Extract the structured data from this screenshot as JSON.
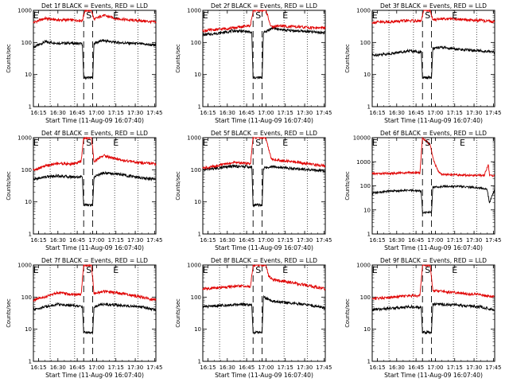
{
  "figure": {
    "time_start": "16:11",
    "time_end": "17:46"
  },
  "chart_data": [
    {
      "type": "line",
      "title": "Det 1f BLACK = Events, RED = LLD",
      "xlabel": "Start Time (11-Aug-09 16:07:40)",
      "ylabel": "Counts/sec",
      "yscale": "log",
      "ylim": [
        1,
        1000
      ],
      "y_ticks": [
        "1",
        "10",
        "100",
        "1000"
      ],
      "x_ticks": [
        "16:15",
        "16:30",
        "16:45",
        "17:00",
        "17:15",
        "17:30",
        "17:45"
      ],
      "markers": {
        "E1": "16:13",
        "S": "16:54",
        "E2": "17:15"
      },
      "vlines_dotted": [
        "16:24",
        "16:43",
        "17:14",
        "17:32"
      ],
      "vlines_dashed": [
        "16:50",
        "16:57"
      ],
      "series": [
        {
          "name": "BLACK = Events",
          "color": "#000000",
          "x": [
            "16:11",
            "16:20",
            "16:30",
            "16:40",
            "16:49",
            "16:50",
            "16:57",
            "16:58",
            "17:05",
            "17:15",
            "17:25",
            "17:35",
            "17:46"
          ],
          "values": [
            70,
            105,
            95,
            95,
            90,
            8,
            8,
            95,
            115,
            100,
            95,
            90,
            80
          ]
        },
        {
          "name": "RED = LLD",
          "color": "#e00000",
          "x": [
            "16:11",
            "16:20",
            "16:30",
            "16:40",
            "16:49",
            "16:51",
            "16:56",
            "16:58",
            "17:05",
            "17:15",
            "17:25",
            "17:35",
            "17:46"
          ],
          "values": [
            420,
            560,
            500,
            500,
            480,
            1000,
            1000,
            520,
            700,
            560,
            500,
            470,
            430
          ]
        }
      ]
    },
    {
      "type": "line",
      "title": "Det 2f BLACK = Events, RED = LLD",
      "xlabel": "Start Time (11-Aug-09 16:07:40)",
      "ylabel": "Counts/sec",
      "yscale": "log",
      "ylim": [
        1,
        1000
      ],
      "y_ticks": [
        "1",
        "10",
        "100",
        "1000"
      ],
      "x_ticks": [
        "16:15",
        "16:30",
        "16:45",
        "17:00",
        "17:15",
        "17:30",
        "17:45"
      ],
      "markers": {
        "E1": "16:13",
        "S": "16:54",
        "E2": "17:15"
      },
      "vlines_dotted": [
        "16:24",
        "16:43",
        "17:14",
        "17:32"
      ],
      "vlines_dashed": [
        "16:50",
        "16:57"
      ],
      "series": [
        {
          "name": "BLACK = Events",
          "color": "#000000",
          "x": [
            "16:11",
            "16:25",
            "16:35",
            "16:45",
            "16:49",
            "16:50",
            "16:57",
            "16:58",
            "17:05",
            "17:15",
            "17:30",
            "17:46"
          ],
          "values": [
            170,
            200,
            230,
            220,
            200,
            8,
            8,
            200,
            280,
            240,
            220,
            200
          ]
        },
        {
          "name": "RED = LLD",
          "color": "#e00000",
          "x": [
            "16:11",
            "16:25",
            "16:40",
            "16:48",
            "16:50",
            "16:52",
            "17:00",
            "17:04",
            "17:10",
            "17:20",
            "17:35",
            "17:46"
          ],
          "values": [
            230,
            260,
            300,
            340,
            1000,
            1000,
            1000,
            300,
            330,
            310,
            290,
            280
          ]
        }
      ]
    },
    {
      "type": "line",
      "title": "Det 3f BLACK = Events, RED = LLD",
      "xlabel": "Start Time (11-Aug-09 16:07:40)",
      "ylabel": "Counts/sec",
      "yscale": "log",
      "ylim": [
        1,
        1000
      ],
      "y_ticks": [
        "1",
        "10",
        "100",
        "1000"
      ],
      "x_ticks": [
        "16:15",
        "16:30",
        "16:45",
        "17:00",
        "17:15",
        "17:30",
        "17:45"
      ],
      "markers": {
        "E1": "16:13",
        "S": "16:54",
        "E2": "17:15"
      },
      "vlines_dotted": [
        "16:24",
        "16:43",
        "17:14",
        "17:32"
      ],
      "vlines_dashed": [
        "16:50",
        "16:57"
      ],
      "series": [
        {
          "name": "BLACK = Events",
          "color": "#000000",
          "x": [
            "16:11",
            "16:25",
            "16:40",
            "16:49",
            "16:50",
            "16:57",
            "16:58",
            "17:05",
            "17:20",
            "17:35",
            "17:46"
          ],
          "values": [
            40,
            45,
            55,
            50,
            8,
            8,
            65,
            70,
            60,
            55,
            50
          ]
        },
        {
          "name": "RED = LLD",
          "color": "#e00000",
          "x": [
            "16:11",
            "16:25",
            "16:40",
            "16:49",
            "16:51",
            "16:56",
            "16:58",
            "17:05",
            "17:20",
            "17:35",
            "17:46"
          ],
          "values": [
            420,
            440,
            480,
            460,
            1000,
            1000,
            500,
            560,
            520,
            480,
            440
          ]
        }
      ]
    },
    {
      "type": "line",
      "title": "Det 4f BLACK = Events, RED = LLD",
      "xlabel": "Start Time (11-Aug-09 16:07:40)",
      "ylabel": "Counts/sec",
      "yscale": "log",
      "ylim": [
        1,
        1000
      ],
      "y_ticks": [
        "1",
        "10",
        "100",
        "1000"
      ],
      "x_ticks": [
        "16:15",
        "16:30",
        "16:45",
        "17:00",
        "17:15",
        "17:30",
        "17:45"
      ],
      "markers": {
        "E1": "16:13",
        "S": "16:54",
        "E2": "17:15"
      },
      "vlines_dotted": [
        "16:24",
        "16:43",
        "17:14",
        "17:32"
      ],
      "vlines_dashed": [
        "16:50",
        "16:57"
      ],
      "series": [
        {
          "name": "BLACK = Events",
          "color": "#000000",
          "x": [
            "16:11",
            "16:20",
            "16:30",
            "16:40",
            "16:49",
            "16:50",
            "16:57",
            "16:58",
            "17:05",
            "17:15",
            "17:30",
            "17:46"
          ],
          "values": [
            50,
            60,
            65,
            60,
            60,
            8,
            8,
            60,
            80,
            75,
            60,
            50
          ]
        },
        {
          "name": "RED = LLD",
          "color": "#e00000",
          "x": [
            "16:11",
            "16:20",
            "16:30",
            "16:40",
            "16:48",
            "16:50",
            "16:56",
            "16:58",
            "17:05",
            "17:15",
            "17:30",
            "17:46"
          ],
          "values": [
            100,
            130,
            160,
            150,
            180,
            1000,
            1000,
            180,
            280,
            220,
            170,
            150
          ]
        }
      ]
    },
    {
      "type": "line",
      "title": "Det 5f BLACK = Events, RED = LLD",
      "xlabel": "Start Time (11-Aug-09 16:07:40)",
      "ylabel": "Counts/sec",
      "yscale": "log",
      "ylim": [
        1,
        1000
      ],
      "y_ticks": [
        "1",
        "10",
        "100",
        "1000"
      ],
      "x_ticks": [
        "16:15",
        "16:30",
        "16:45",
        "17:00",
        "17:15",
        "17:30",
        "17:45"
      ],
      "markers": {
        "E1": "16:13",
        "S": "16:54",
        "E2": "17:15"
      },
      "vlines_dotted": [
        "16:24",
        "16:43",
        "17:14",
        "17:32"
      ],
      "vlines_dashed": [
        "16:50",
        "16:57"
      ],
      "series": [
        {
          "name": "BLACK = Events",
          "color": "#000000",
          "x": [
            "16:11",
            "16:20",
            "16:35",
            "16:45",
            "16:49",
            "16:50",
            "16:57",
            "16:58",
            "17:05",
            "17:20",
            "17:35",
            "17:46"
          ],
          "values": [
            100,
            110,
            130,
            125,
            120,
            8,
            8,
            110,
            130,
            110,
            100,
            90
          ]
        },
        {
          "name": "RED = LLD",
          "color": "#e00000",
          "x": [
            "16:11",
            "16:20",
            "16:35",
            "16:45",
            "16:48",
            "16:50",
            "17:00",
            "17:04",
            "17:10",
            "17:25",
            "17:35",
            "17:46"
          ],
          "values": [
            110,
            130,
            170,
            160,
            150,
            1000,
            1000,
            220,
            200,
            170,
            150,
            130
          ]
        }
      ]
    },
    {
      "type": "line",
      "title": "Det 6f BLACK = Events, RED = LLD",
      "xlabel": "Start Time (11-Aug-09 16:07:40)",
      "ylabel": "Counts/sec",
      "yscale": "log",
      "ylim": [
        1,
        10000
      ],
      "y_ticks": [
        "1",
        "10",
        "100",
        "1000",
        "10000"
      ],
      "x_ticks": [
        "16:15",
        "16:30",
        "16:45",
        "17:00",
        "17:15",
        "17:30",
        "17:45"
      ],
      "markers": {
        "E1": "16:13",
        "S": "16:54",
        "E2": "17:21"
      },
      "vlines_dotted": [
        "16:24",
        "16:43",
        "17:14",
        "17:32"
      ],
      "vlines_dashed": [
        "16:50",
        "16:57"
      ],
      "series": [
        {
          "name": "BLACK = Events",
          "color": "#000000",
          "x": [
            "16:11",
            "16:25",
            "16:40",
            "16:49",
            "16:50",
            "16:57",
            "16:58",
            "17:05",
            "17:20",
            "17:35",
            "17:40",
            "17:42",
            "17:46"
          ],
          "values": [
            50,
            60,
            65,
            60,
            8,
            8,
            85,
            95,
            95,
            80,
            75,
            20,
            70
          ]
        },
        {
          "name": "RED = LLD",
          "color": "#e00000",
          "x": [
            "16:11",
            "16:25",
            "16:40",
            "16:48",
            "16:50",
            "16:56",
            "16:58",
            "17:02",
            "17:05",
            "17:20",
            "17:38",
            "17:41",
            "17:42",
            "17:46"
          ],
          "values": [
            320,
            330,
            350,
            350,
            10000,
            5000,
            1500,
            400,
            300,
            280,
            270,
            800,
            280,
            260
          ]
        }
      ]
    },
    {
      "type": "line",
      "title": "Det 7f BLACK = Events, RED = LLD",
      "xlabel": "Start Time (11-Aug-09 16:07:40)",
      "ylabel": "Counts/sec",
      "yscale": "log",
      "ylim": [
        1,
        1000
      ],
      "y_ticks": [
        "1",
        "10",
        "100",
        "1000"
      ],
      "x_ticks": [
        "16:15",
        "16:30",
        "16:45",
        "17:00",
        "17:15",
        "17:30",
        "17:45"
      ],
      "markers": {
        "E1": "16:13",
        "S": "16:54",
        "E2": "17:15"
      },
      "vlines_dotted": [
        "16:24",
        "16:43",
        "17:14",
        "17:32"
      ],
      "vlines_dashed": [
        "16:50",
        "16:57"
      ],
      "series": [
        {
          "name": "BLACK = Events",
          "color": "#000000",
          "x": [
            "16:11",
            "16:20",
            "16:30",
            "16:40",
            "16:49",
            "16:50",
            "16:57",
            "16:58",
            "17:05",
            "17:20",
            "17:35",
            "17:46"
          ],
          "values": [
            40,
            50,
            60,
            55,
            50,
            8,
            8,
            50,
            60,
            55,
            50,
            40
          ]
        },
        {
          "name": "RED = LLD",
          "color": "#e00000",
          "x": [
            "16:11",
            "16:20",
            "16:30",
            "16:40",
            "16:48",
            "16:50",
            "16:56",
            "16:58",
            "17:05",
            "17:20",
            "17:35",
            "17:46"
          ],
          "values": [
            80,
            100,
            140,
            120,
            120,
            1000,
            1000,
            130,
            150,
            130,
            100,
            80
          ]
        }
      ]
    },
    {
      "type": "line",
      "title": "Det 8f BLACK = Events, RED = LLD",
      "xlabel": "Start Time (11-Aug-09 16:07:40)",
      "ylabel": "Counts/sec",
      "yscale": "log",
      "ylim": [
        1,
        1000
      ],
      "y_ticks": [
        "1",
        "10",
        "100",
        "1000"
      ],
      "x_ticks": [
        "16:15",
        "16:30",
        "16:45",
        "17:00",
        "17:15",
        "17:30",
        "17:45"
      ],
      "markers": {
        "E1": "16:13",
        "S": "16:54",
        "E2": "17:15"
      },
      "vlines_dotted": [
        "16:24",
        "16:43",
        "17:14",
        "17:32"
      ],
      "vlines_dashed": [
        "16:50",
        "16:57"
      ],
      "series": [
        {
          "name": "BLACK = Events",
          "color": "#000000",
          "x": [
            "16:11",
            "16:25",
            "16:40",
            "16:49",
            "16:50",
            "16:57",
            "16:58",
            "17:05",
            "17:20",
            "17:35",
            "17:46"
          ],
          "values": [
            50,
            55,
            60,
            55,
            8,
            8,
            100,
            75,
            65,
            55,
            45
          ]
        },
        {
          "name": "RED = LLD",
          "color": "#e00000",
          "x": [
            "16:11",
            "16:25",
            "16:40",
            "16:48",
            "16:50",
            "17:00",
            "17:02",
            "17:05",
            "17:20",
            "17:35",
            "17:46"
          ],
          "values": [
            180,
            200,
            220,
            210,
            1000,
            1000,
            450,
            350,
            280,
            220,
            180
          ]
        }
      ]
    },
    {
      "type": "line",
      "title": "Det 9f BLACK = Events, RED = LLD",
      "xlabel": "Start Time (11-Aug-09 16:07:40)",
      "ylabel": "Counts/sec",
      "yscale": "log",
      "ylim": [
        1,
        1000
      ],
      "y_ticks": [
        "1",
        "10",
        "100",
        "1000"
      ],
      "x_ticks": [
        "16:15",
        "16:30",
        "16:45",
        "17:00",
        "17:15",
        "17:30",
        "17:45"
      ],
      "markers": {
        "E1": "16:13",
        "S": "16:54",
        "E2": "17:15"
      },
      "vlines_dotted": [
        "16:24",
        "16:43",
        "17:14",
        "17:32"
      ],
      "vlines_dashed": [
        "16:50",
        "16:57"
      ],
      "series": [
        {
          "name": "BLACK = Events",
          "color": "#000000",
          "x": [
            "16:11",
            "16:25",
            "16:40",
            "16:49",
            "16:50",
            "16:57",
            "16:58",
            "17:05",
            "17:20",
            "17:35",
            "17:46"
          ],
          "values": [
            40,
            45,
            50,
            48,
            8,
            8,
            60,
            60,
            55,
            50,
            40
          ]
        },
        {
          "name": "RED = LLD",
          "color": "#e00000",
          "x": [
            "16:11",
            "16:25",
            "16:40",
            "16:48",
            "16:50",
            "16:56",
            "16:58",
            "17:05",
            "17:20",
            "17:35",
            "17:46"
          ],
          "values": [
            90,
            100,
            110,
            110,
            1000,
            1000,
            160,
            150,
            130,
            120,
            100
          ]
        }
      ]
    }
  ]
}
